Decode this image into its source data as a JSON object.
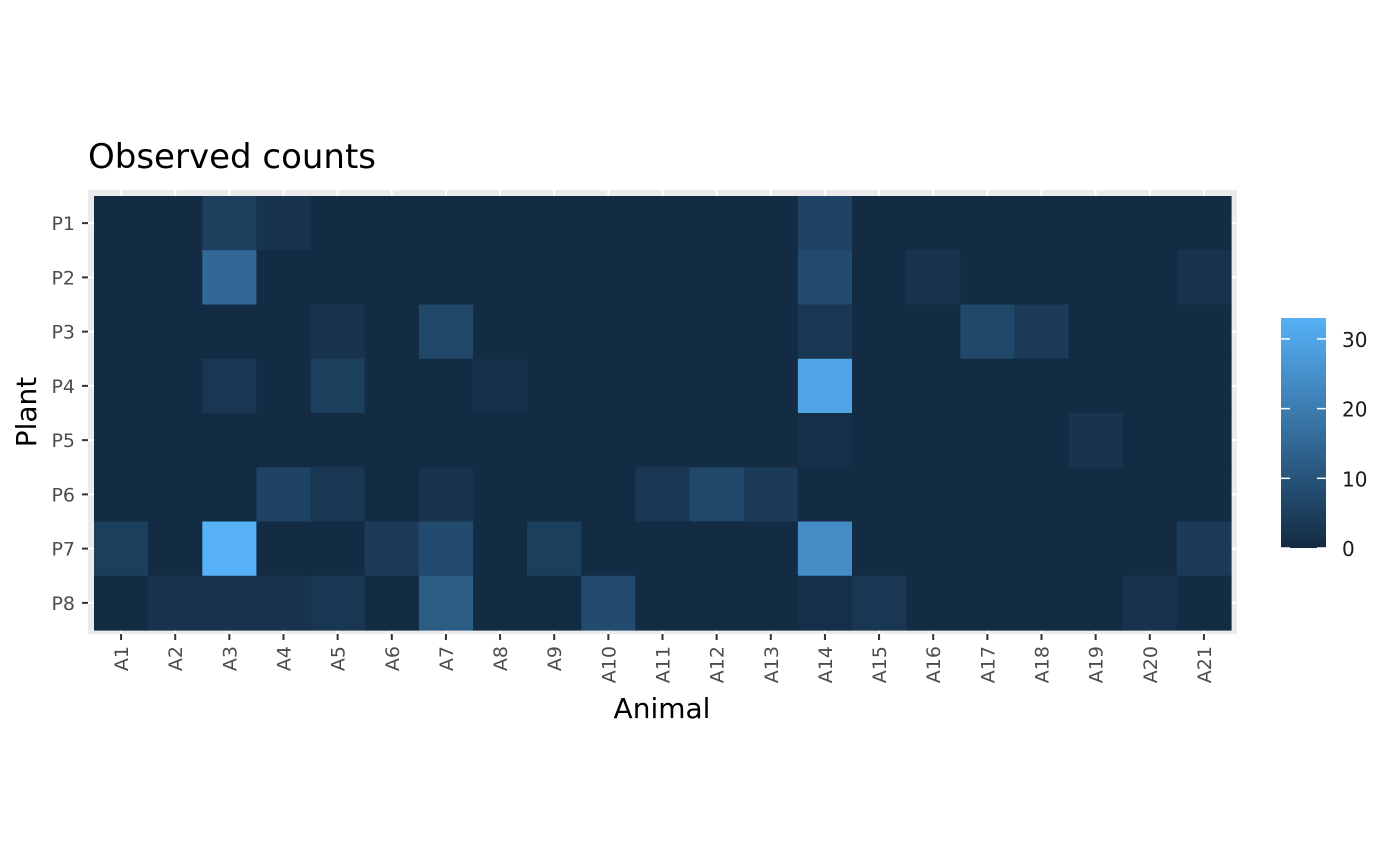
{
  "chart_data": {
    "type": "heatmap",
    "title": "Observed counts",
    "xlabel": "Animal",
    "ylabel": "Plant",
    "x": [
      "A1",
      "A2",
      "A3",
      "A4",
      "A5",
      "A6",
      "A7",
      "A8",
      "A9",
      "A10",
      "A11",
      "A12",
      "A13",
      "A14",
      "A15",
      "A16",
      "A17",
      "A18",
      "A19",
      "A20",
      "A21"
    ],
    "y": [
      "P1",
      "P2",
      "P3",
      "P4",
      "P5",
      "P6",
      "P7",
      "P8"
    ],
    "values": [
      [
        0,
        0,
        5,
        2,
        0,
        0,
        0,
        0,
        0,
        0,
        0,
        0,
        0,
        6,
        0,
        0,
        0,
        0,
        0,
        0,
        0
      ],
      [
        0,
        0,
        15,
        0,
        0,
        0,
        0,
        0,
        0,
        0,
        0,
        0,
        0,
        8,
        0,
        2,
        0,
        0,
        0,
        0,
        2
      ],
      [
        0,
        0,
        0,
        0,
        2,
        0,
        7,
        0,
        0,
        0,
        0,
        0,
        0,
        3,
        0,
        0,
        7,
        4,
        0,
        0,
        0
      ],
      [
        0,
        0,
        3,
        0,
        5,
        0,
        0,
        1,
        0,
        0,
        0,
        0,
        0,
        30,
        0,
        0,
        0,
        0,
        0,
        0,
        0
      ],
      [
        0,
        0,
        0,
        0,
        0,
        0,
        0,
        0,
        0,
        0,
        0,
        0,
        0,
        1,
        0,
        0,
        0,
        0,
        2,
        0,
        0
      ],
      [
        0,
        0,
        0,
        6,
        3,
        0,
        2,
        0,
        0,
        0,
        3,
        7,
        4,
        0,
        0,
        0,
        0,
        0,
        0,
        0,
        0
      ],
      [
        5,
        0,
        33,
        0,
        0,
        4,
        8,
        0,
        5,
        0,
        0,
        0,
        0,
        24,
        0,
        0,
        0,
        0,
        0,
        0,
        4
      ],
      [
        0,
        2,
        2,
        2,
        3,
        0,
        12,
        0,
        0,
        8,
        0,
        0,
        0,
        1,
        3,
        0,
        0,
        0,
        0,
        2,
        0
      ]
    ],
    "color_scale": {
      "low": "#132b43",
      "high": "#56b1f7",
      "min": 0,
      "max": 33
    },
    "legend": {
      "position": "right",
      "ticks": [
        0,
        10,
        20,
        30
      ]
    },
    "panel_background": "#ebebeb"
  }
}
